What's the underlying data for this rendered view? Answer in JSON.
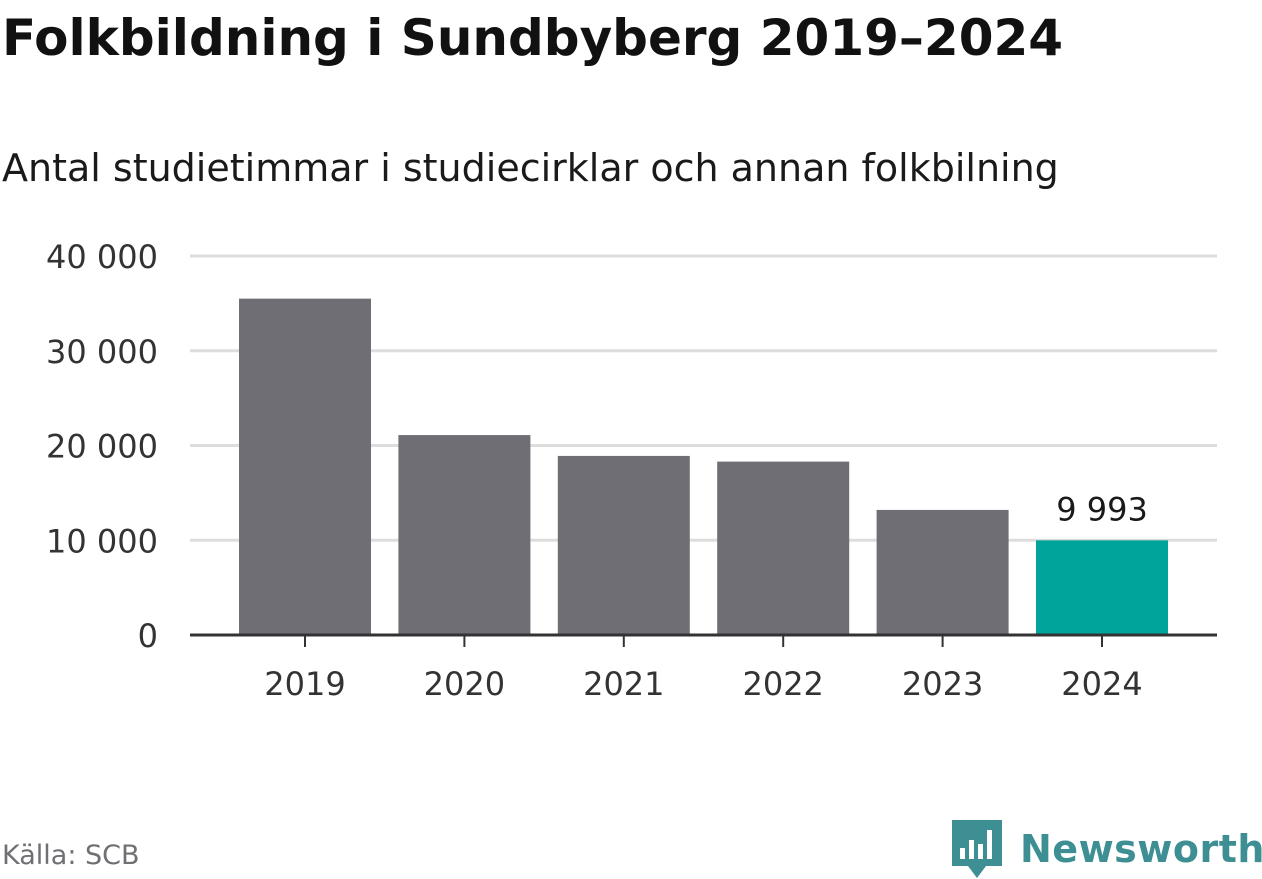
{
  "header": {
    "title": "Folkbildning i Sundbyberg 2019–2024",
    "subtitle": "Antal studietimmar i studiecirklar och annan folkbilning"
  },
  "footer": {
    "source": "Källa: SCB",
    "brand": "Newsworthy",
    "brand_icon": "newsworthy-logo-icon"
  },
  "colors": {
    "bar": "#6f6e74",
    "highlight": "#00a49a",
    "grid": "#dddddd",
    "axis": "#333333",
    "brand": "#3d8f94"
  },
  "chart_data": {
    "type": "bar",
    "title": "Folkbildning i Sundbyberg 2019–2024",
    "subtitle": "Antal studietimmar i studiecirklar och annan folkbilning",
    "categories": [
      "2019",
      "2020",
      "2021",
      "2022",
      "2023",
      "2024"
    ],
    "values": [
      35500,
      21100,
      18900,
      18300,
      13200,
      9993
    ],
    "highlight_index": 5,
    "data_labels": [
      "",
      "",
      "",
      "",
      "",
      "9 993"
    ],
    "ylim": [
      0,
      40000
    ],
    "yticks": [
      0,
      10000,
      20000,
      30000,
      40000
    ],
    "ytick_labels": [
      "0",
      "10 000",
      "20 000",
      "30 000",
      "40 000"
    ],
    "xlabel": "",
    "ylabel": "",
    "grid": true
  }
}
